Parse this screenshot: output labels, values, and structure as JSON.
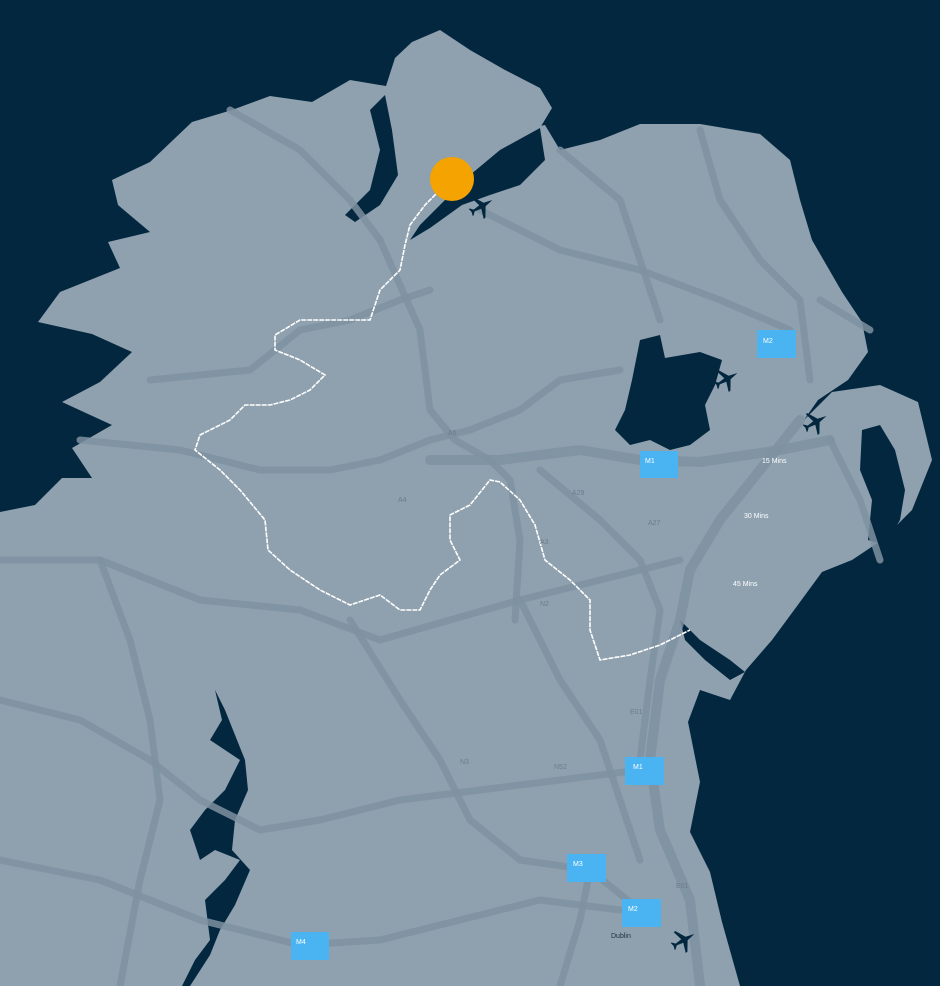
{
  "map": {
    "colors": {
      "sea": "#03273f",
      "land": "#8fa1af",
      "road": "#7e92a1",
      "motorway_badge": "#4ab4f2",
      "marker": "#f5a300",
      "border": "#ffffff"
    },
    "marker": {
      "icon": "location-circle"
    },
    "motorway_badges": [
      {
        "label": "M2"
      },
      {
        "label": "M1"
      },
      {
        "label": "M1"
      },
      {
        "label": "M3"
      },
      {
        "label": "M2"
      },
      {
        "label": "M4"
      }
    ],
    "road_labels": [
      "A5",
      "A4",
      "A29",
      "A27",
      "A3",
      "N2",
      "N3",
      "N52",
      "E01",
      "E01"
    ],
    "drive_times": [
      "15 Mins",
      "30 Mins",
      "45 Mins"
    ],
    "cities": [
      "Dublin"
    ],
    "airports": [
      {
        "icon": "airplane-icon"
      },
      {
        "icon": "airplane-icon"
      },
      {
        "icon": "airplane-icon"
      },
      {
        "icon": "airplane-icon"
      }
    ]
  }
}
